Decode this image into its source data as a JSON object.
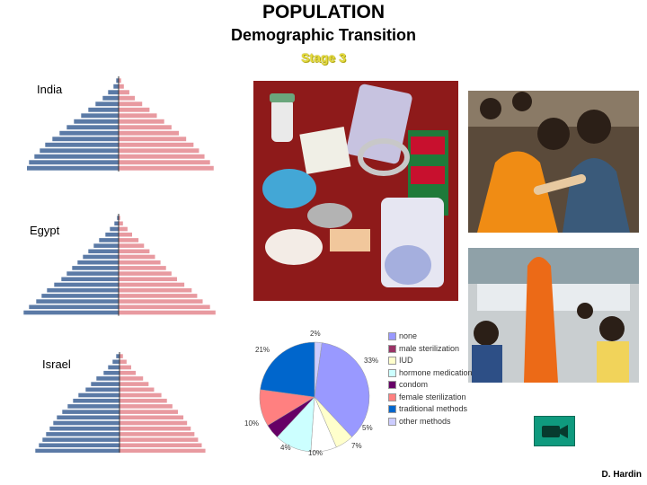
{
  "header": {
    "title": "POPULATION",
    "subtitle": "Demographic Transition",
    "stage": "Stage 3"
  },
  "pyramids": {
    "india": {
      "label": "India"
    },
    "egypt": {
      "label": "Egypt"
    },
    "israel": {
      "label": "Israel"
    }
  },
  "colors": {
    "male": "#5b7aa6",
    "female": "#e89aa0"
  },
  "chart_data": {
    "type": "pie",
    "slices": [
      {
        "label": "none",
        "pct": "33%",
        "value": 33,
        "color": "#9999ff"
      },
      {
        "label": "male sterilization",
        "pct": "",
        "value": 0,
        "color": "#993366"
      },
      {
        "label": "IUD",
        "pct": "5%",
        "value": 5,
        "color": "#ffffcc"
      },
      {
        "label": "hormone medication",
        "pct": "10%",
        "value": 10,
        "color": "#ccffff"
      },
      {
        "label": "condom",
        "pct": "4%",
        "value": 4,
        "color": "#660066"
      },
      {
        "label": "female sterilization",
        "pct": "10%",
        "value": 10,
        "color": "#ff8080"
      },
      {
        "label": "traditional methods",
        "pct": "21%",
        "value": 21,
        "color": "#0066cc"
      },
      {
        "label": "other methods",
        "pct": "2%",
        "value": 2,
        "color": "#ccccff"
      }
    ],
    "extra_labels": [
      "7%"
    ]
  },
  "footer": {
    "author": "D. Hardin"
  },
  "video": {
    "icon": "video-camera-icon"
  }
}
